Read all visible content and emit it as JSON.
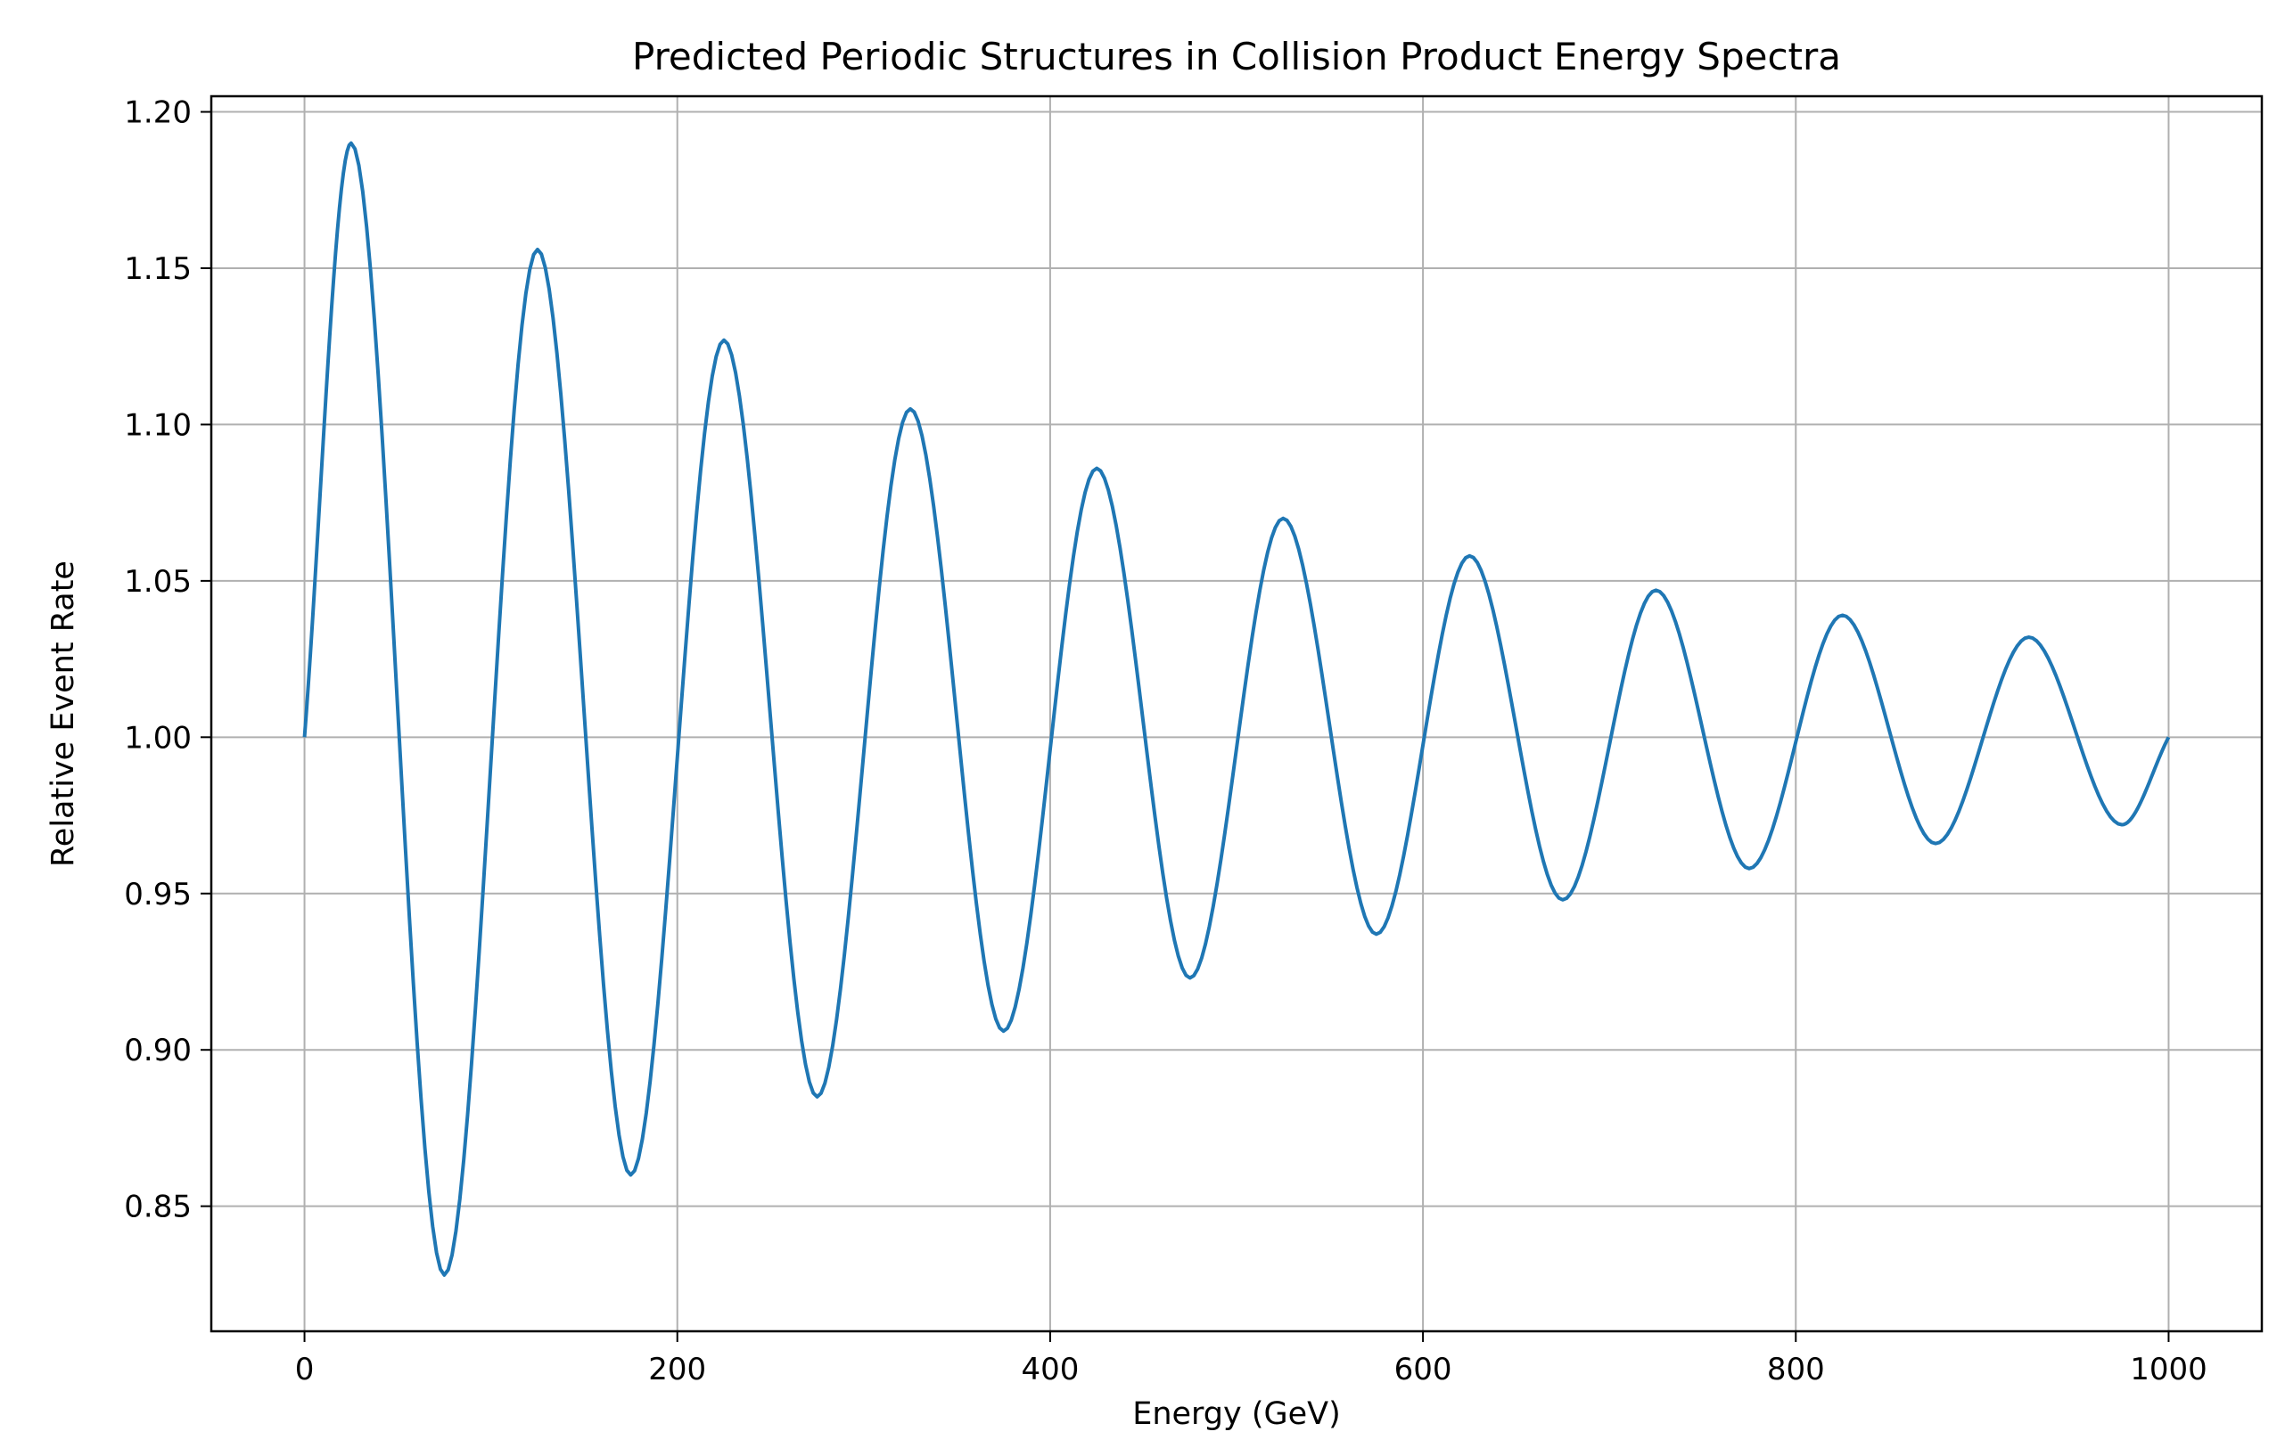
{
  "colors": {
    "line": "#1f77b4",
    "grid": "#b0b0b0",
    "axes": "#000000",
    "background": "#ffffff"
  },
  "chart_data": {
    "type": "line",
    "title": "Predicted Periodic Structures in Collision Product Energy Spectra",
    "xlabel": "Energy (GeV)",
    "ylabel": "Relative Event Rate",
    "xlim": [
      -50,
      1050
    ],
    "ylim": [
      0.81,
      1.205
    ],
    "grid": true,
    "x_ticks": [
      0,
      200,
      400,
      600,
      800,
      1000
    ],
    "x_tick_labels": [
      "0",
      "200",
      "400",
      "600",
      "800",
      "1000"
    ],
    "y_ticks": [
      0.85,
      0.9,
      0.95,
      1.0,
      1.05,
      1.1,
      1.15,
      1.2
    ],
    "y_tick_labels": [
      "0.85",
      "0.90",
      "0.95",
      "1.00",
      "1.05",
      "1.10",
      "1.15",
      "1.20"
    ],
    "series": [
      {
        "name": "Relative Event Rate",
        "x": [
          0,
          25,
          75,
          125,
          175,
          225,
          275,
          325,
          375,
          425,
          475,
          525,
          575,
          625,
          675,
          725,
          775,
          825,
          875,
          925,
          975,
          1000
        ],
        "y": [
          1.0,
          1.19,
          0.828,
          1.156,
          0.86,
          1.127,
          0.885,
          1.105,
          0.906,
          1.086,
          0.923,
          1.07,
          0.937,
          1.058,
          0.948,
          1.047,
          0.958,
          1.039,
          0.966,
          1.032,
          0.972,
          1.0
        ]
      }
    ]
  }
}
